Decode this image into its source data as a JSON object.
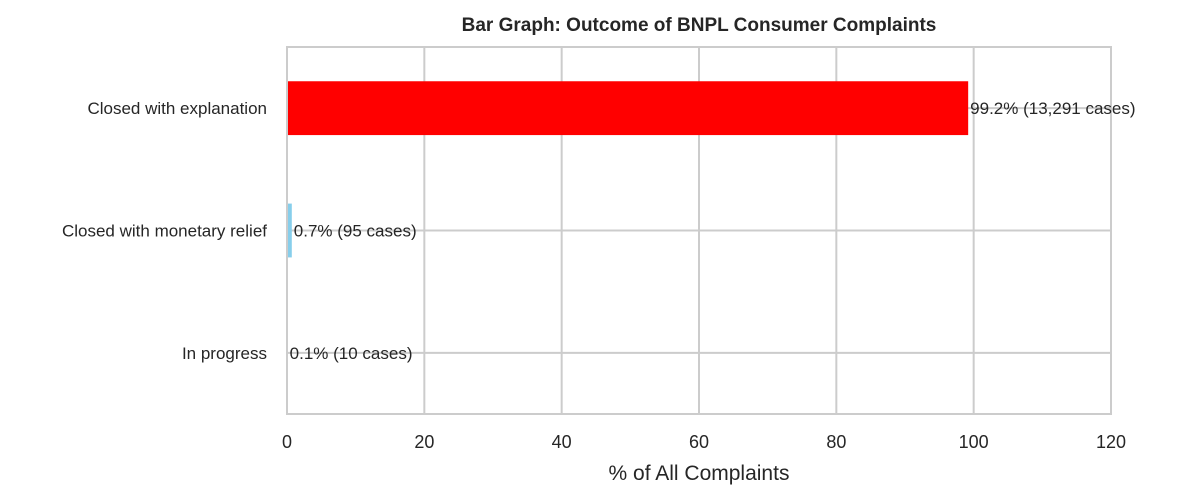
{
  "chart_data": {
    "type": "bar",
    "orientation": "horizontal",
    "title": "Bar Graph: Outcome of BNPL Consumer Complaints",
    "xlabel": "% of All Complaints",
    "ylabel": "",
    "xlim": [
      0,
      120
    ],
    "xticks": [
      0,
      20,
      40,
      60,
      80,
      100,
      120
    ],
    "grid": true,
    "categories": [
      "Closed with explanation",
      "Closed with monetary relief",
      "In progress"
    ],
    "values": [
      99.2,
      0.7,
      0.1
    ],
    "cases": [
      13291,
      95,
      10
    ],
    "data_labels": [
      "99.2%  (13,291 cases)",
      "0.7%  (95 cases)",
      "0.1%  (10 cases)"
    ],
    "colors": [
      "#ff0000",
      "#87ceeb",
      "#808080"
    ]
  }
}
